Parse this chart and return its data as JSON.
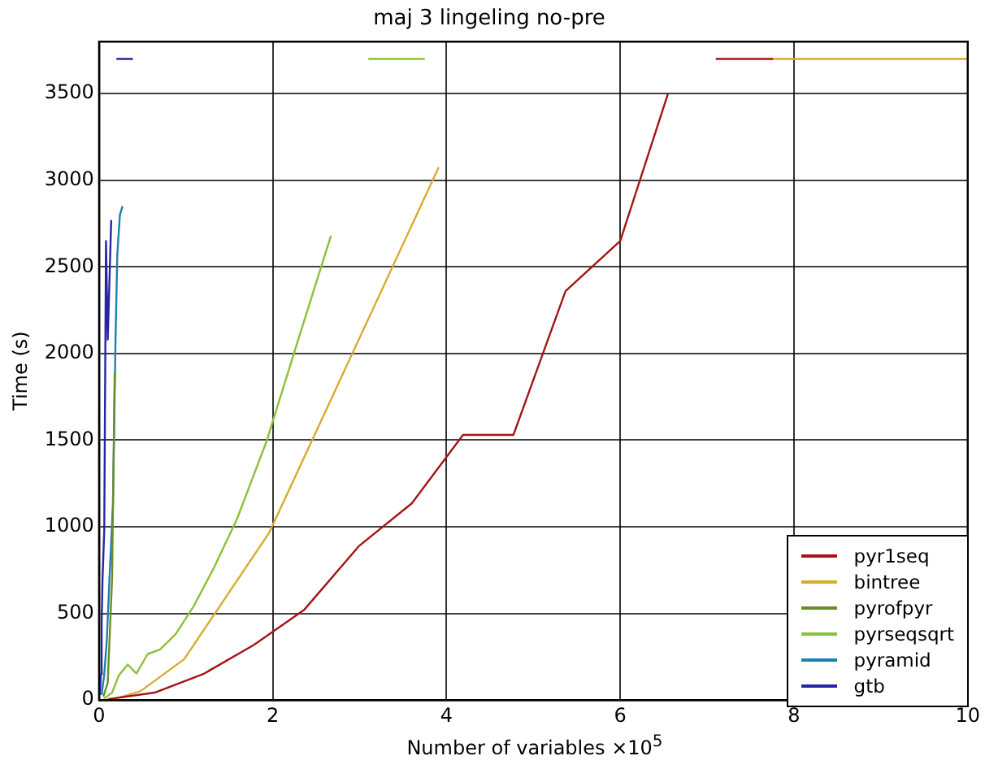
{
  "chart_data": {
    "type": "line",
    "title": "maj 3 lingeling no-pre",
    "xlabel": "Number of variables  ×10$^{5}$",
    "ylabel": "Time (s)",
    "xlim": [
      0,
      10
    ],
    "xticks": [
      0,
      2,
      4,
      6,
      8,
      10
    ],
    "ylim": [
      0,
      3800
    ],
    "yticks": [
      0,
      500,
      1000,
      1500,
      2000,
      2500,
      3000,
      3500
    ],
    "grid": true,
    "legend": "bottom right",
    "series": [
      {
        "name": "pyr1seq",
        "color": "#a31515",
        "x": [
          0.1,
          0.64,
          1.2,
          1.78,
          2.36,
          2.99,
          3.6,
          4.19,
          4.77,
          5.37,
          6.0,
          6.55,
          6.8,
          7.1,
          7.76
        ],
        "values": [
          5,
          43,
          150,
          318,
          520,
          888,
          1135,
          1530,
          1530,
          2360,
          2650,
          3500,
          null,
          3700,
          3700
        ]
      },
      {
        "name": "bintree",
        "color": "#d8aa30",
        "x": [
          0.2,
          0.48,
          0.98,
          1.96,
          3.91,
          6.0,
          7.76,
          10
        ],
        "values": [
          10,
          52,
          236,
          967,
          3075,
          null,
          3700,
          3700
        ]
      },
      {
        "name": "pyrofpyr",
        "color": "#6b8e23",
        "x": [
          0.05,
          0.1,
          0.15,
          0.18
        ],
        "values": [
          20,
          100,
          700,
          1890
        ]
      },
      {
        "name": "pyrseqsqrt",
        "color": "#8cc03a",
        "x": [
          0.05,
          0.15,
          0.23,
          0.33,
          0.43,
          0.56,
          0.7,
          0.88,
          1.09,
          1.33,
          1.59,
          1.93,
          2.29,
          2.67,
          2.9,
          3.1,
          3.75
        ],
        "values": [
          5,
          43,
          144,
          205,
          153,
          266,
          291,
          379,
          542,
          771,
          1047,
          1496,
          2075,
          2680,
          null,
          3700,
          3700
        ]
      },
      {
        "name": "pyramid",
        "color": "#1f80b0",
        "x": [
          0.03,
          0.06,
          0.09,
          0.12,
          0.16,
          0.19,
          0.21,
          0.24,
          0.27
        ],
        "values": [
          30,
          150,
          350,
          700,
          1130,
          2090,
          2570,
          2800,
          2850
        ]
      },
      {
        "name": "gtb",
        "color": "#2525a5",
        "x": [
          0.01,
          0.02,
          0.03,
          0.04,
          0.06,
          0.08,
          0.1,
          0.14,
          0.17,
          0.2,
          0.39
        ],
        "values": [
          30,
          150,
          450,
          700,
          980,
          2650,
          2080,
          2770,
          null,
          3700,
          3700
        ]
      }
    ]
  }
}
